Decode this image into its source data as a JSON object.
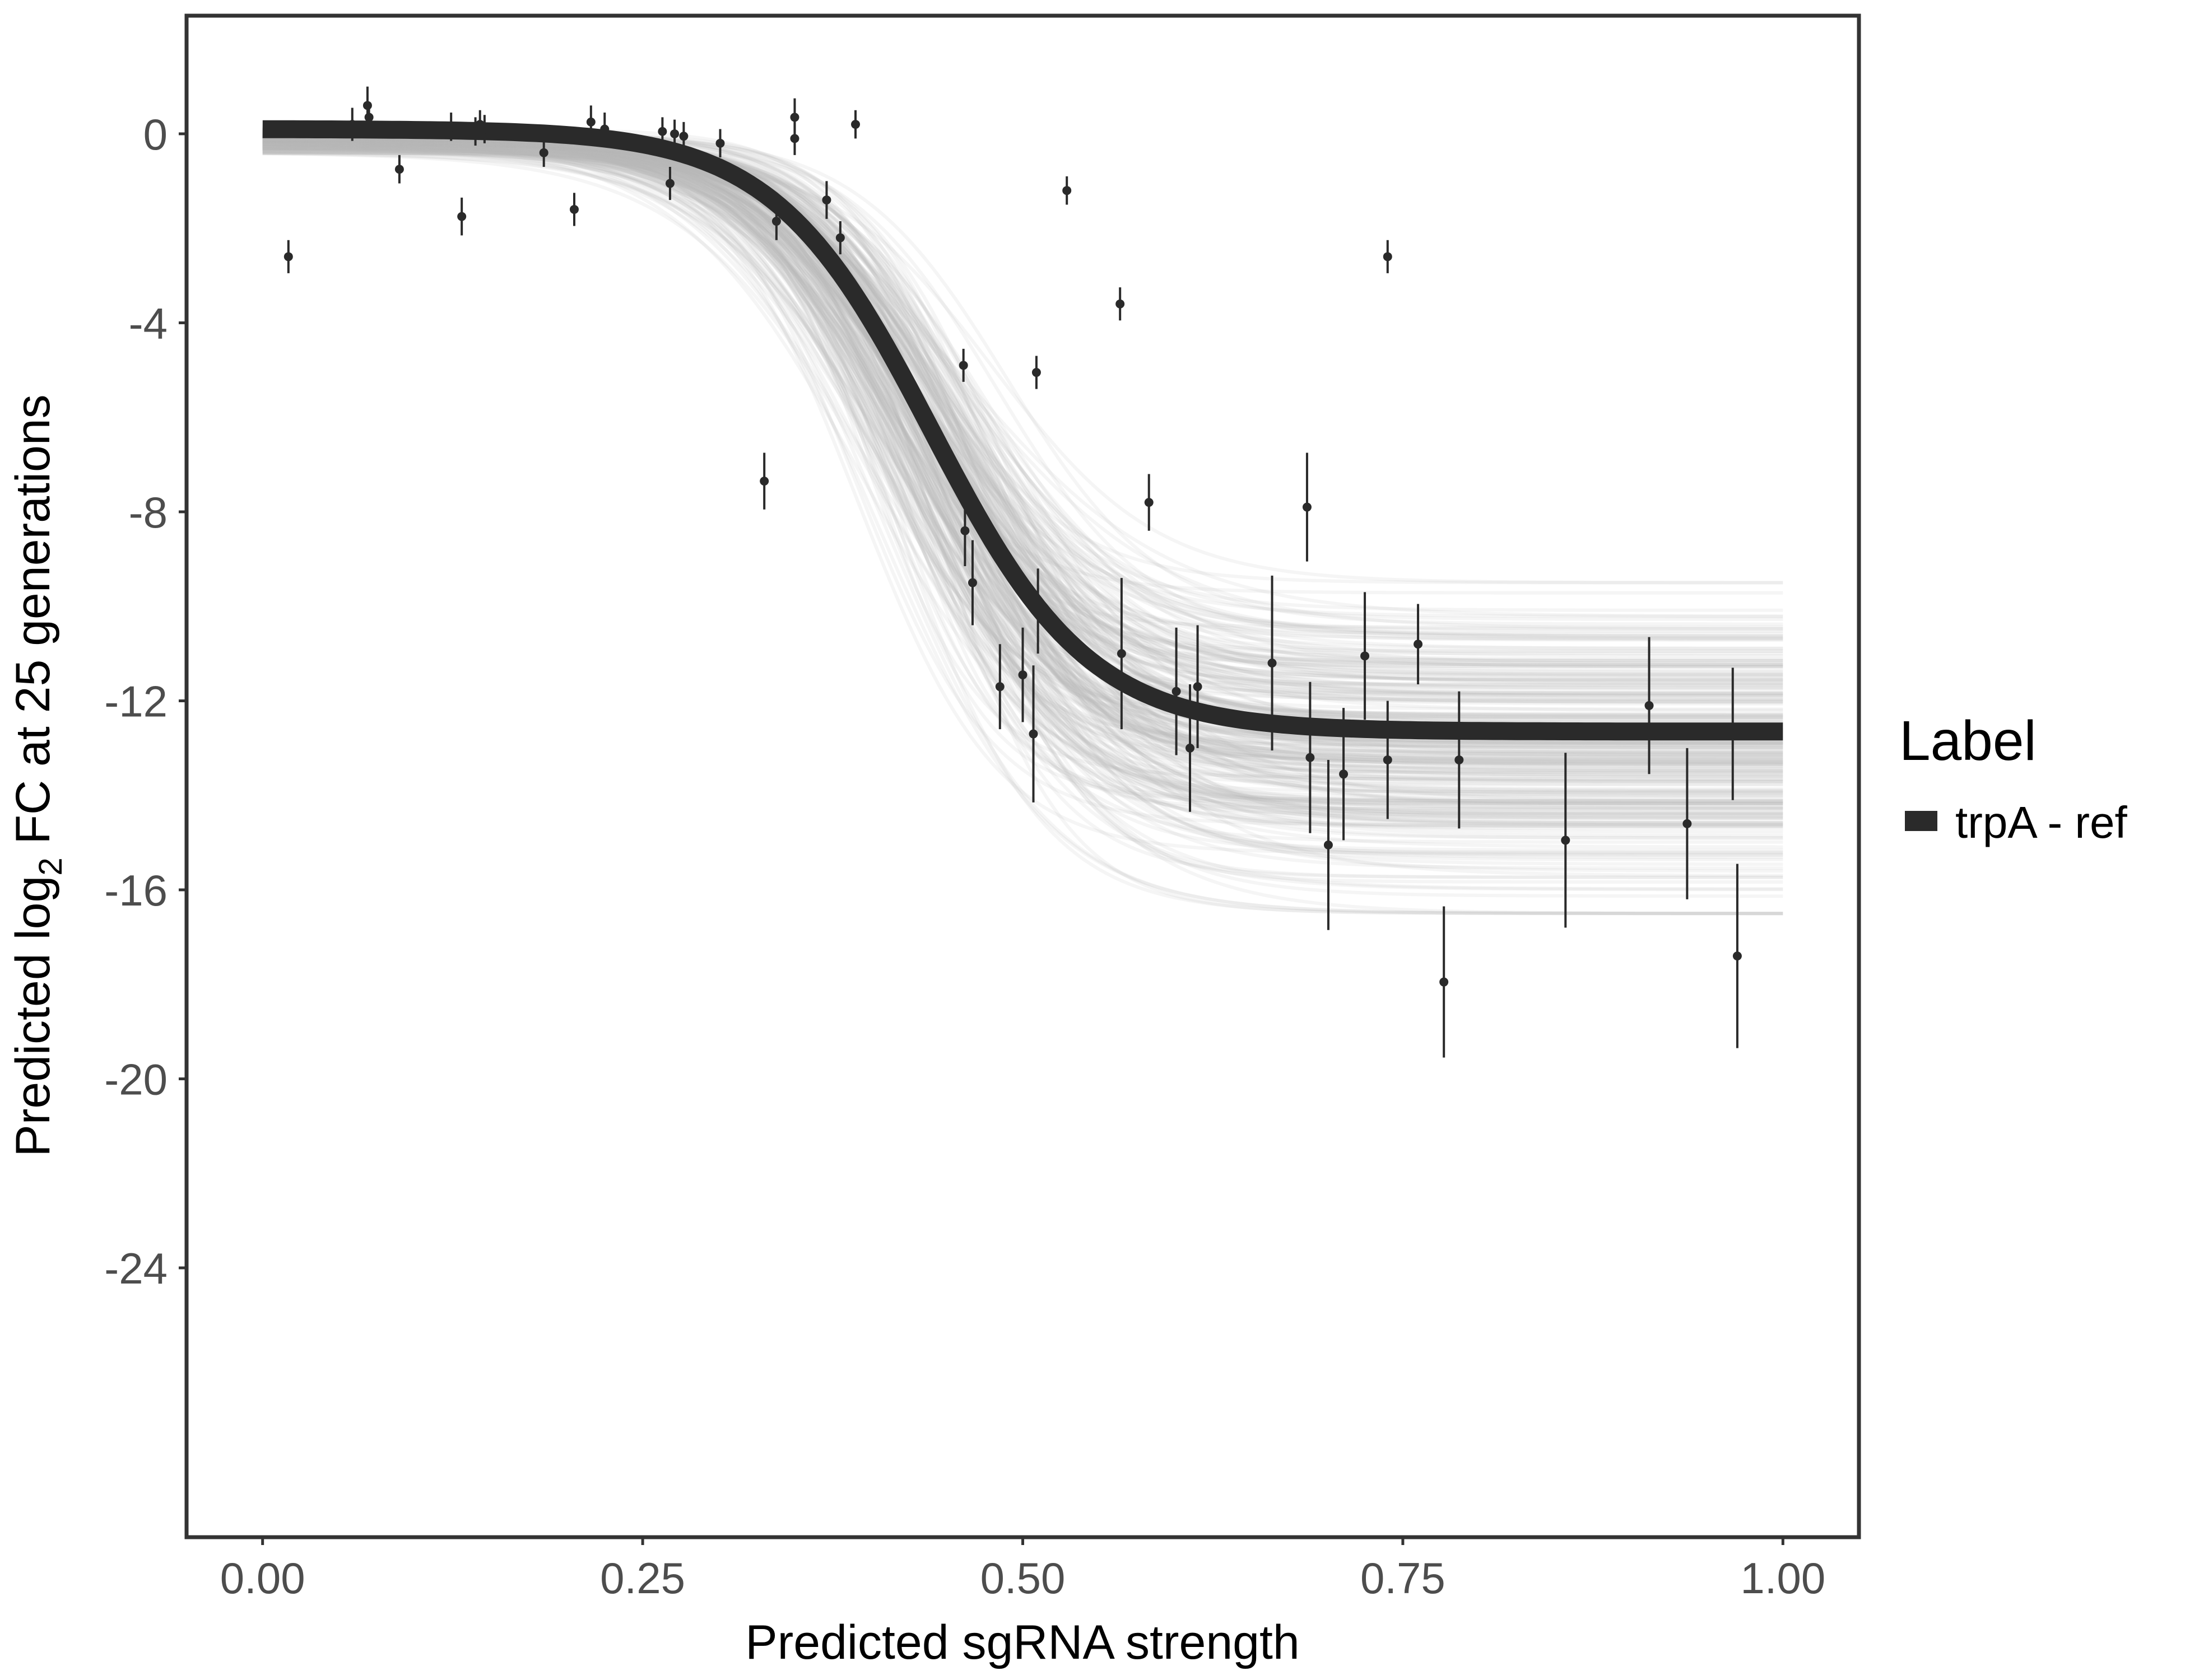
{
  "chart_data": {
    "type": "line",
    "xlabel": "Predicted sgRNA strength",
    "ylabel_prefix": "Predicted  log",
    "ylabel_subscript": "2",
    "ylabel_suffix": " FC at 25 generations",
    "xlim": [
      -0.05,
      1.05
    ],
    "ylim": [
      -29.7,
      2.5
    ],
    "x_ticks": [
      0.0,
      0.25,
      0.5,
      0.75,
      1.0
    ],
    "x_tick_labels": [
      "0.00",
      "0.25",
      "0.50",
      "0.75",
      "1.00"
    ],
    "y_ticks": [
      0,
      -4,
      -8,
      -12,
      -16,
      -20,
      -24
    ],
    "y_tick_labels": [
      "0",
      "-4",
      "-8",
      "-12",
      "-16",
      "-20",
      "-24"
    ],
    "grid": false,
    "legend": {
      "title": "Label",
      "position": "right",
      "entries": [
        {
          "label": "trpA - ref",
          "color": "#2a2a2a"
        }
      ]
    },
    "fit_curve": {
      "name": "trpA - ref",
      "model": "logistic",
      "upper": 0.1,
      "lower": -12.65,
      "midpoint": 0.44,
      "scale": 0.052,
      "color": "#2a2a2a"
    },
    "posterior_band": {
      "color": "#b5b5b5",
      "upper_asymptote_range": [
        -0.4,
        0.1
      ],
      "lower_asymptote_range": [
        -16.5,
        -9.5
      ],
      "midpoint_range": [
        0.39,
        0.49
      ]
    },
    "points": [
      {
        "x": 0.017,
        "y": -2.6,
        "err": 0.35
      },
      {
        "x": 0.059,
        "y": 0.2,
        "err": 0.35
      },
      {
        "x": 0.069,
        "y": 0.6,
        "err": 0.4
      },
      {
        "x": 0.07,
        "y": 0.35,
        "err": 0.3
      },
      {
        "x": 0.09,
        "y": -0.75,
        "err": 0.3
      },
      {
        "x": 0.124,
        "y": 0.15,
        "err": 0.3
      },
      {
        "x": 0.131,
        "y": -1.75,
        "err": 0.4
      },
      {
        "x": 0.14,
        "y": 0.05,
        "err": 0.3
      },
      {
        "x": 0.143,
        "y": 0.2,
        "err": 0.3
      },
      {
        "x": 0.146,
        "y": 0.1,
        "err": 0.3
      },
      {
        "x": 0.185,
        "y": -0.4,
        "err": 0.3
      },
      {
        "x": 0.205,
        "y": -1.6,
        "err": 0.35
      },
      {
        "x": 0.216,
        "y": 0.25,
        "err": 0.35
      },
      {
        "x": 0.225,
        "y": 0.1,
        "err": 0.35
      },
      {
        "x": 0.263,
        "y": 0.05,
        "err": 0.3
      },
      {
        "x": 0.268,
        "y": -1.05,
        "err": 0.35
      },
      {
        "x": 0.271,
        "y": 0.0,
        "err": 0.3
      },
      {
        "x": 0.277,
        "y": -0.05,
        "err": 0.3
      },
      {
        "x": 0.301,
        "y": -0.2,
        "err": 0.3
      },
      {
        "x": 0.33,
        "y": -7.35,
        "err": 0.6
      },
      {
        "x": 0.338,
        "y": -1.85,
        "err": 0.4
      },
      {
        "x": 0.35,
        "y": 0.35,
        "err": 0.4
      },
      {
        "x": 0.35,
        "y": -0.1,
        "err": 0.35
      },
      {
        "x": 0.371,
        "y": -1.4,
        "err": 0.4
      },
      {
        "x": 0.38,
        "y": -2.2,
        "err": 0.35
      },
      {
        "x": 0.39,
        "y": 0.2,
        "err": 0.3
      },
      {
        "x": 0.461,
        "y": -4.9,
        "err": 0.35
      },
      {
        "x": 0.462,
        "y": -8.4,
        "err": 0.75
      },
      {
        "x": 0.467,
        "y": -9.5,
        "err": 0.9
      },
      {
        "x": 0.485,
        "y": -11.7,
        "err": 0.9
      },
      {
        "x": 0.5,
        "y": -11.45,
        "err": 1.0
      },
      {
        "x": 0.507,
        "y": -12.7,
        "err": 1.45
      },
      {
        "x": 0.509,
        "y": -5.05,
        "err": 0.35
      },
      {
        "x": 0.51,
        "y": -10.1,
        "err": 0.9
      },
      {
        "x": 0.529,
        "y": -1.2,
        "err": 0.3
      },
      {
        "x": 0.564,
        "y": -3.6,
        "err": 0.35
      },
      {
        "x": 0.565,
        "y": -11.0,
        "err": 1.6
      },
      {
        "x": 0.583,
        "y": -7.8,
        "err": 0.6
      },
      {
        "x": 0.601,
        "y": -11.8,
        "err": 1.35
      },
      {
        "x": 0.61,
        "y": -13.0,
        "err": 1.35
      },
      {
        "x": 0.615,
        "y": -11.7,
        "err": 1.3
      },
      {
        "x": 0.664,
        "y": -11.2,
        "err": 1.85
      },
      {
        "x": 0.687,
        "y": -7.9,
        "err": 1.15
      },
      {
        "x": 0.689,
        "y": -13.2,
        "err": 1.6
      },
      {
        "x": 0.701,
        "y": -15.05,
        "err": 1.8
      },
      {
        "x": 0.711,
        "y": -13.55,
        "err": 1.4
      },
      {
        "x": 0.725,
        "y": -11.05,
        "err": 1.35
      },
      {
        "x": 0.74,
        "y": -2.6,
        "err": 0.35
      },
      {
        "x": 0.74,
        "y": -13.25,
        "err": 1.25
      },
      {
        "x": 0.76,
        "y": -10.8,
        "err": 0.85
      },
      {
        "x": 0.777,
        "y": -17.95,
        "err": 1.6
      },
      {
        "x": 0.787,
        "y": -13.25,
        "err": 1.45
      },
      {
        "x": 0.857,
        "y": -14.95,
        "err": 1.85
      },
      {
        "x": 0.912,
        "y": -12.1,
        "err": 1.45
      },
      {
        "x": 0.937,
        "y": -14.6,
        "err": 1.6
      },
      {
        "x": 0.967,
        "y": -12.7,
        "err": 1.4
      },
      {
        "x": 0.97,
        "y": -17.4,
        "err": 1.95
      }
    ]
  }
}
